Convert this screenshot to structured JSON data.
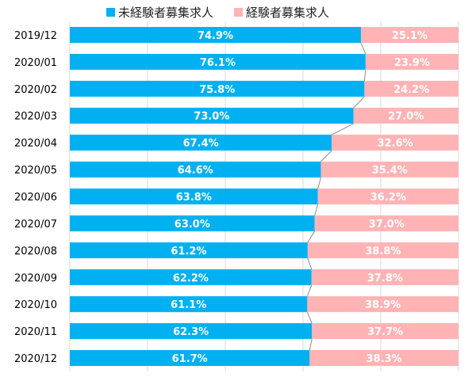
{
  "chart_data": {
    "type": "bar",
    "orientation": "horizontal",
    "stacked": "percent",
    "categories": [
      "2019/12",
      "2020/01",
      "2020/02",
      "2020/03",
      "2020/04",
      "2020/05",
      "2020/06",
      "2020/07",
      "2020/08",
      "2020/09",
      "2020/10",
      "2020/11",
      "2020/12"
    ],
    "series": [
      {
        "name": "未経験者募集求人",
        "color": "#00B0F0",
        "values": [
          74.9,
          76.1,
          75.8,
          73.0,
          67.4,
          64.6,
          63.8,
          63.0,
          61.2,
          62.2,
          61.1,
          62.3,
          61.7
        ],
        "labels": [
          "74.9%",
          "76.1%",
          "75.8%",
          "73.0%",
          "67.4%",
          "64.6%",
          "63.8%",
          "63.0%",
          "61.2%",
          "62.2%",
          "61.1%",
          "62.3%",
          "61.7%"
        ]
      },
      {
        "name": "経験者募集求人",
        "color": "#FFB3B5",
        "values": [
          25.1,
          23.9,
          24.2,
          27.0,
          32.6,
          35.4,
          36.2,
          37.0,
          38.8,
          37.8,
          38.9,
          37.7,
          38.3
        ],
        "labels": [
          "25.1%",
          "23.9%",
          "24.2%",
          "27.0%",
          "32.6%",
          "35.4%",
          "36.2%",
          "37.0%",
          "38.8%",
          "37.8%",
          "38.9%",
          "37.7%",
          "38.3%"
        ]
      }
    ],
    "xlim": [
      0,
      100
    ],
    "grid": true,
    "legend": "top",
    "series_lines": true
  }
}
